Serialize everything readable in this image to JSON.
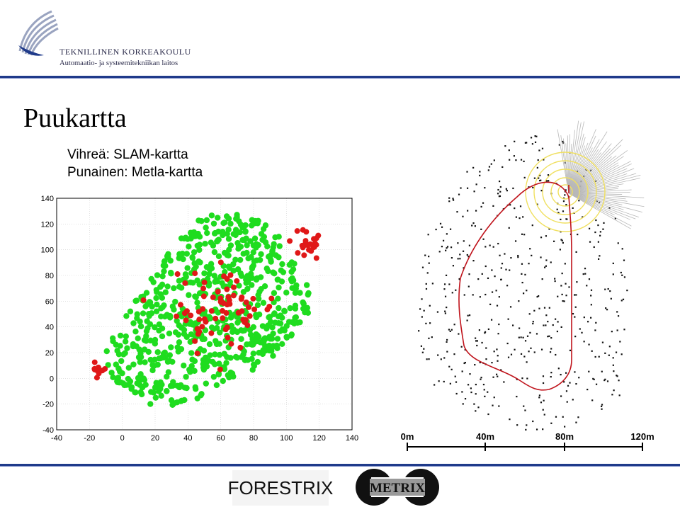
{
  "header": {
    "org_name": "TEKNILLINEN KORKEAKOULU",
    "org_dept": "Automaatio- ja systeemitekniikan laitos"
  },
  "slide": {
    "title": "Puukartta",
    "legend_green": "Vihreä: SLAM-kartta",
    "legend_red": "Punainen: Metla-kartta"
  },
  "colors": {
    "green": "#1fdc1f",
    "red": "#e01818",
    "accent": "#1f3a8a",
    "path": "#c0141c",
    "sensor": "#f0e060"
  },
  "chart_data": [
    {
      "type": "scatter",
      "xlim": [
        -40,
        140
      ],
      "ylim": [
        -40,
        140
      ],
      "xticks": [
        "-40",
        "-20",
        "0",
        "20",
        "40",
        "60",
        "80",
        "100",
        "120",
        "140"
      ],
      "yticks": [
        "140",
        "120",
        "100",
        "80",
        "60",
        "40",
        "20",
        "0",
        "-20",
        "-40"
      ],
      "grid": true,
      "series": [
        {
          "color": "#1fdc1f",
          "region": {
            "center": [
              62,
              52
            ],
            "extent": "approx. x -10..115, y -20..130"
          },
          "point_count": 700
        },
        {
          "color": "#e01818",
          "clusters": [
            {
              "center": [
                112,
                105
              ],
              "spread": [
                10,
                10
              ],
              "count": 25
            },
            {
              "center": [
                -15,
                5
              ],
              "spread": [
                6,
                8
              ],
              "count": 10
            },
            {
              "center": [
                60,
                55
              ],
              "spread": [
                30,
                30
              ],
              "count": 70
            }
          ]
        }
      ]
    },
    {
      "type": "scatter",
      "scale_labels": [
        "0m",
        "40m",
        "80m",
        "120m"
      ],
      "point_count": 520,
      "path_color": "#c0141c"
    }
  ],
  "footer": {
    "logo_forestrix": "FORESTRIX",
    "logo_metrix": "METRIX"
  }
}
